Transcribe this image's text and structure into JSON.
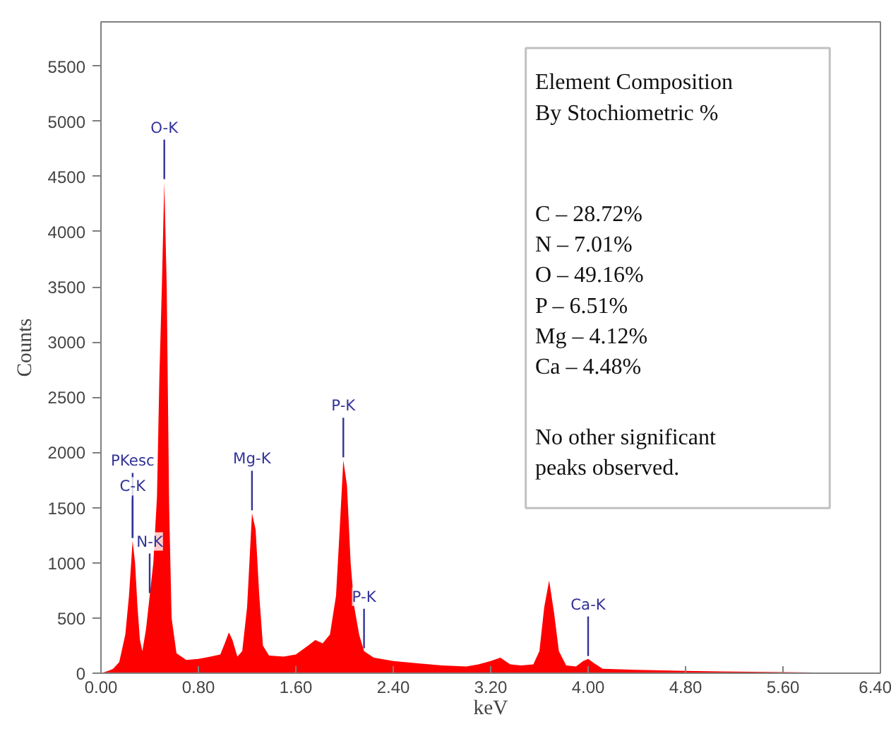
{
  "chart_data": {
    "type": "area",
    "xlabel": "keV",
    "ylabel": "Counts",
    "x": [
      0.0,
      0.06,
      0.1,
      0.15,
      0.2,
      0.23,
      0.26,
      0.28,
      0.3,
      0.32,
      0.34,
      0.37,
      0.4,
      0.43,
      0.46,
      0.48,
      0.5,
      0.52,
      0.54,
      0.56,
      0.58,
      0.62,
      0.7,
      0.8,
      0.9,
      0.98,
      1.02,
      1.05,
      1.08,
      1.12,
      1.16,
      1.2,
      1.24,
      1.27,
      1.3,
      1.33,
      1.38,
      1.5,
      1.6,
      1.7,
      1.76,
      1.82,
      1.88,
      1.93,
      1.96,
      1.99,
      2.02,
      2.05,
      2.08,
      2.12,
      2.16,
      2.24,
      2.4,
      2.6,
      2.8,
      3.0,
      3.1,
      3.2,
      3.28,
      3.36,
      3.45,
      3.55,
      3.6,
      3.64,
      3.68,
      3.72,
      3.76,
      3.82,
      3.9,
      3.96,
      4.0,
      4.05,
      4.12,
      4.4,
      4.8,
      5.6,
      6.4
    ],
    "series": [
      {
        "color": "#ff0000",
        "values": [
          0,
          20,
          40,
          100,
          350,
          700,
          1200,
          1000,
          600,
          300,
          200,
          400,
          700,
          1000,
          1600,
          2700,
          3500,
          4450,
          3500,
          1500,
          500,
          180,
          120,
          130,
          150,
          170,
          280,
          370,
          300,
          150,
          200,
          600,
          1450,
          1300,
          700,
          250,
          160,
          150,
          170,
          250,
          300,
          270,
          350,
          700,
          1300,
          1930,
          1700,
          1000,
          600,
          350,
          200,
          140,
          110,
          90,
          70,
          60,
          80,
          110,
          140,
          80,
          70,
          80,
          200,
          600,
          840,
          550,
          200,
          70,
          60,
          110,
          130,
          90,
          40,
          30,
          20,
          10,
          0
        ]
      }
    ],
    "xlim": [
      0,
      6.4
    ],
    "ylim": [
      0,
      5900
    ],
    "xticks": [
      {
        "value": 0,
        "label": "0.00"
      },
      {
        "value": 0.8,
        "label": "0.80"
      },
      {
        "value": 1.6,
        "label": "1.60"
      },
      {
        "value": 2.4,
        "label": "2.40"
      },
      {
        "value": 3.2,
        "label": "3.20"
      },
      {
        "value": 4.0,
        "label": "4.00"
      },
      {
        "value": 4.8,
        "label": "4.80"
      },
      {
        "value": 5.6,
        "label": "5.60"
      },
      {
        "value": 6.4,
        "label": "6.40"
      }
    ],
    "yticks": [
      0,
      500,
      1000,
      1500,
      2000,
      2500,
      3000,
      3500,
      4000,
      4500,
      5000,
      5500
    ],
    "grid": false,
    "annotations": [
      {
        "text": "PKesc",
        "x": 0.26,
        "y": 1200
      },
      {
        "text": "C-K",
        "x": 0.26,
        "y": 1200
      },
      {
        "text": "N-K",
        "x": 0.4,
        "y": 700
      },
      {
        "text": "O-K",
        "x": 0.52,
        "y": 4450
      },
      {
        "text": "Mg-K",
        "x": 1.24,
        "y": 1450
      },
      {
        "text": "P-K",
        "x": 1.99,
        "y": 1930
      },
      {
        "text": "P-K",
        "x": 2.16,
        "y": 200
      },
      {
        "text": "Ca-K",
        "x": 4.0,
        "y": 130
      },
      "Element Composition",
      "By Stochiometric %",
      "C – 28.72%",
      "N – 7.01%",
      "O – 49.16%",
      "P – 6.51%",
      "Mg – 4.12%",
      "Ca – 4.48%",
      "No other significant",
      "peaks observed."
    ]
  }
}
